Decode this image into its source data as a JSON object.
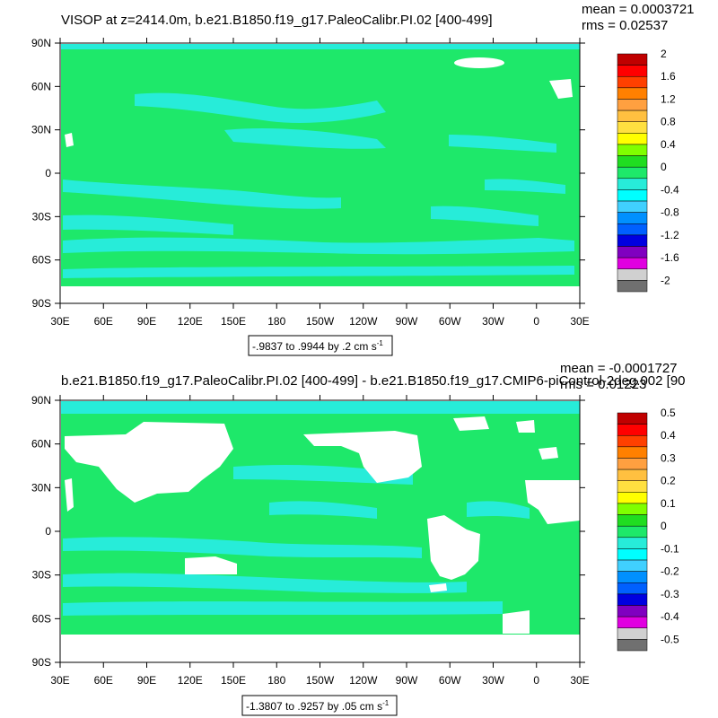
{
  "palette": {
    "field_main": "#1ee86a",
    "field_neg": "#27ecd9",
    "field_light": "#00ffff",
    "land": "#ffffff",
    "frame": "#000000"
  },
  "chart_data": [
    {
      "type": "heatmap",
      "title": "VISOP at z=2414.0m, b.e21.B1850.f19_g17.PaleoCalibr.PI.02 [400-499]",
      "stats": {
        "mean": "mean = 0.0003721",
        "rms": "rms = 0.02537"
      },
      "xlabels": [
        "30E",
        "60E",
        "90E",
        "120E",
        "150E",
        "180",
        "150W",
        "120W",
        "90W",
        "60W",
        "30W",
        "0",
        "30E"
      ],
      "ylabels": [
        "90N",
        "60N",
        "30N",
        "0",
        "30S",
        "60S",
        "90S"
      ],
      "range_label": "-.9837 to .9944 by .2 cm s",
      "range_unit_sup": "-1",
      "colorbar": {
        "labels": [
          "2",
          "1.6",
          "1.2",
          "0.8",
          "0.4",
          "0",
          "-0.4",
          "-0.8",
          "-1.2",
          "-1.6",
          "-2"
        ],
        "colors": [
          "#c00000",
          "#ff0000",
          "#ff4000",
          "#ff8000",
          "#ffa040",
          "#ffc040",
          "#ffe040",
          "#ffff00",
          "#80ff00",
          "#20dd20",
          "#1ee86a",
          "#27ecd9",
          "#00ffff",
          "#40d0ff",
          "#0090ff",
          "#0060ff",
          "#0000e0",
          "#8000c0",
          "#e000e0",
          "#d0d0d0",
          "#707070"
        ]
      }
    },
    {
      "type": "heatmap",
      "title": "b.e21.B1850.f19_g17.PaleoCalibr.PI.02 [400-499] - b.e21.B1850.f19_g17.CMIP6-piControl-2deg.002 [90",
      "stats": {
        "mean": "mean = -0.0001727",
        "rms": "rms = 0.01223"
      },
      "xlabels": [
        "30E",
        "60E",
        "90E",
        "120E",
        "150E",
        "180",
        "150W",
        "120W",
        "90W",
        "60W",
        "30W",
        "0",
        "30E"
      ],
      "ylabels": [
        "90N",
        "60N",
        "30N",
        "0",
        "30S",
        "60S",
        "90S"
      ],
      "range_label": "-1.3807 to .9257 by .05 cm s",
      "range_unit_sup": "-1",
      "colorbar": {
        "labels": [
          "0.5",
          "0.4",
          "0.3",
          "0.2",
          "0.1",
          "0",
          "-0.1",
          "-0.2",
          "-0.3",
          "-0.4",
          "-0.5"
        ],
        "colors": [
          "#c00000",
          "#ff0000",
          "#ff4000",
          "#ff8000",
          "#ffa040",
          "#ffc040",
          "#ffe040",
          "#ffff00",
          "#80ff00",
          "#20dd20",
          "#1ee86a",
          "#27ecd9",
          "#00ffff",
          "#40d0ff",
          "#0090ff",
          "#0060ff",
          "#0000e0",
          "#8000c0",
          "#e000e0",
          "#d0d0d0",
          "#707070"
        ]
      }
    }
  ]
}
